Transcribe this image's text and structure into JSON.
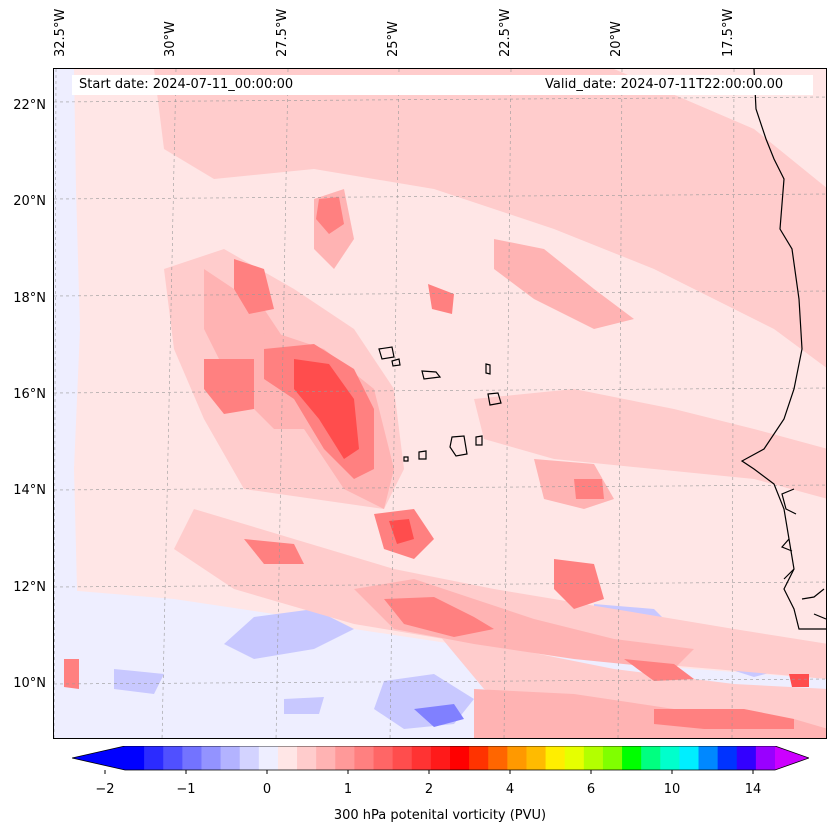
{
  "header": {
    "start_date": "Start date: 2024-07-11_00:00:00",
    "valid_date": "Valid_date: 2024-07-11T22:00:00.00"
  },
  "axes": {
    "lon_labels": [
      "32.5°W",
      "30°W",
      "27.5°W",
      "25°W",
      "22.5°W",
      "20°W",
      "17.5°W"
    ],
    "lat_labels": [
      "22°N",
      "20°N",
      "18°N",
      "16°N",
      "14°N",
      "12°N",
      "10°N"
    ]
  },
  "colorbar": {
    "label": "300 hPa potenital vorticity (PVU)",
    "tick_labels": [
      "−2",
      "−1",
      "0",
      "1",
      "2",
      "4",
      "6",
      "10",
      "14"
    ],
    "colors": [
      "#0000ff",
      "#2b2bff",
      "#5050ff",
      "#7373ff",
      "#9393ff",
      "#b3b3ff",
      "#d3d3ff",
      "#eeeeff",
      "#ffe6e6",
      "#ffcccc",
      "#ffb3b3",
      "#ff9999",
      "#ff8080",
      "#ff6666",
      "#ff4d4d",
      "#ff3333",
      "#ff1a1a",
      "#ff0000",
      "#ff3300",
      "#ff6600",
      "#ff9900",
      "#ffbb00",
      "#ffee00",
      "#e6ff00",
      "#b3ff00",
      "#80ff00",
      "#00ff00",
      "#00ff80",
      "#00ffcc",
      "#00eeff",
      "#0088ff",
      "#0033ff",
      "#3300ff",
      "#9900ff"
    ],
    "min_arrow_color": "#0000ff",
    "max_arrow_color": "#cc00ff"
  },
  "map_colors": {
    "background": "#ffe6e6",
    "light_pink": "#ffcccc",
    "pink": "#ffb3b3",
    "mid_red": "#ff8080",
    "red": "#ff4d4d",
    "light_blue": "#eeeeff",
    "blue": "#c8c8ff",
    "dark_blue": "#8080ff",
    "coast": "#000000"
  }
}
